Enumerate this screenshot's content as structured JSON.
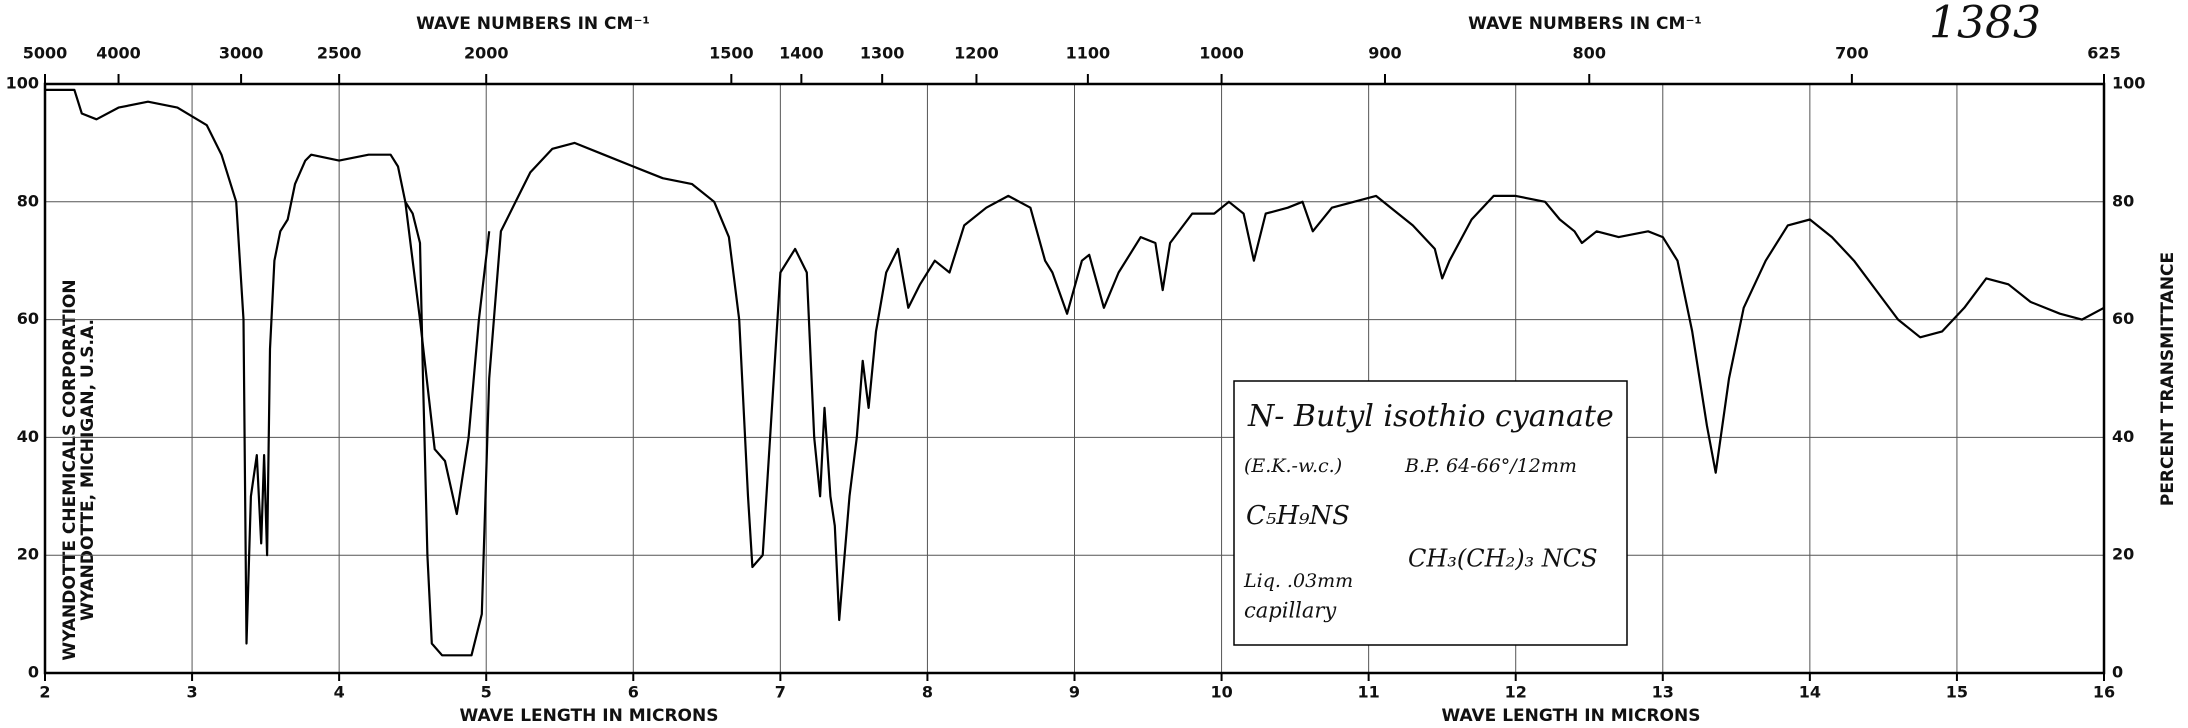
{
  "chart_data": {
    "type": "line",
    "top_title_left": "WAVE NUMBERS IN CM⁻¹",
    "top_title_right": "WAVE NUMBERS IN CM⁻¹",
    "xlabel_left": "WAVE LENGTH IN MICRONS",
    "xlabel_right": "WAVE LENGTH IN MICRONS",
    "ylabel": "PERCENT TRANSMITTANCE",
    "spectrum_number": "1383",
    "publisher": "WYANDOTTE CHEMICALS CORPORATION",
    "publisher_location": "WYANDOTTE, MICHIGAN, U.S.A.",
    "annotation": {
      "compound": "N- Butyl isothio cyanate",
      "source": "(E.K.-w.c.)",
      "boiling_point": "B.P. 64-66°/12mm",
      "formula": "C₅H₉NS",
      "structure": "CH₃(CH₂)₃ NCS",
      "sample": "Liq. .03mm",
      "cell": "capillary"
    },
    "xlim": [
      2,
      16
    ],
    "xticks": [
      2,
      3,
      4,
      5,
      6,
      7,
      8,
      9,
      10,
      11,
      12,
      13,
      14,
      15,
      16
    ],
    "x2ticks": [
      5000,
      4000,
      3000,
      2500,
      2000,
      1500,
      1400,
      1300,
      1200,
      1100,
      1000,
      900,
      800,
      700,
      625
    ],
    "ylim": [
      0,
      100
    ],
    "yticks": [
      0,
      20,
      40,
      60,
      80,
      100
    ],
    "grid": true,
    "series": [
      {
        "color": "#000000",
        "x": [
          2.0,
          2.2,
          2.25,
          2.35,
          2.5,
          2.7,
          2.9,
          3.1,
          3.2,
          3.3,
          3.35,
          3.37,
          3.4,
          3.44,
          3.47,
          3.49,
          3.51,
          3.53,
          3.56,
          3.6,
          3.65,
          3.7,
          3.77,
          3.81,
          4.0,
          4.2,
          4.35,
          4.4,
          4.45,
          4.5,
          4.55,
          4.57,
          4.6,
          4.63,
          4.7,
          4.8,
          4.9,
          4.97,
          5.02,
          5.1,
          5.2,
          5.3,
          5.45,
          5.6,
          5.8,
          6.0,
          6.2,
          6.4,
          6.55,
          6.65,
          6.72,
          6.78,
          6.81,
          6.88,
          6.93,
          7.0,
          7.1,
          7.18,
          7.23,
          7.27,
          7.3,
          7.34,
          7.37,
          7.4,
          7.47,
          7.52,
          7.56,
          7.6,
          7.65,
          7.72,
          7.8,
          7.87,
          7.95,
          8.05,
          8.15,
          8.25,
          8.4,
          8.55,
          8.7,
          8.8,
          8.85,
          8.95,
          9.05,
          9.1,
          9.2,
          9.3,
          9.45,
          9.55,
          9.6,
          9.65,
          9.8,
          9.95,
          10.05,
          10.15,
          10.22,
          10.3,
          10.45,
          10.55,
          10.62,
          10.75,
          10.9,
          11.05,
          11.2,
          11.3,
          11.45,
          11.5,
          11.55,
          11.7,
          11.85,
          12.0,
          12.2,
          12.3,
          12.4,
          12.45,
          12.55,
          12.7,
          12.9,
          13.0,
          13.1,
          13.2,
          13.3,
          13.36,
          13.45,
          13.55,
          13.7,
          13.85,
          14.0,
          14.15,
          14.3,
          14.45,
          14.6,
          14.75,
          14.9,
          15.05,
          15.2,
          15.35,
          15.5,
          15.7,
          15.85,
          16.0
        ],
        "values": [
          99,
          99,
          95,
          94,
          96,
          97,
          96,
          93,
          88,
          80,
          60,
          5,
          30,
          37,
          22,
          37,
          20,
          55,
          70,
          75,
          77,
          83,
          87,
          88,
          87,
          88,
          88,
          86,
          80,
          78,
          73,
          50,
          20,
          5,
          3,
          3,
          3,
          10,
          50,
          75,
          80,
          85,
          89,
          90,
          88,
          86,
          84,
          83,
          80,
          74,
          60,
          30,
          18,
          20,
          40,
          68,
          72,
          68,
          40,
          30,
          45,
          30,
          25,
          9,
          30,
          40,
          53,
          45,
          58,
          68,
          72,
          62,
          66,
          70,
          68,
          76,
          79,
          81,
          79,
          70,
          68,
          61,
          70,
          71,
          62,
          68,
          74,
          73,
          65,
          73,
          78,
          78,
          80,
          78,
          70,
          78,
          79,
          80,
          75,
          79,
          80,
          81,
          78,
          76,
          72,
          67,
          70,
          77,
          81,
          81,
          80,
          77,
          75,
          73,
          75,
          74,
          75,
          74,
          70,
          58,
          42,
          34,
          50,
          62,
          70,
          76,
          77,
          74,
          70,
          65,
          60,
          57,
          58,
          62,
          67,
          66,
          63,
          61,
          60,
          62
        ]
      },
      {
        "color": "#000000",
        "x": [
          4.45,
          4.55,
          4.65,
          4.72,
          4.8,
          4.88,
          4.95,
          5.02
        ],
        "values": [
          80,
          60,
          38,
          36,
          27,
          40,
          60,
          75
        ]
      }
    ]
  }
}
